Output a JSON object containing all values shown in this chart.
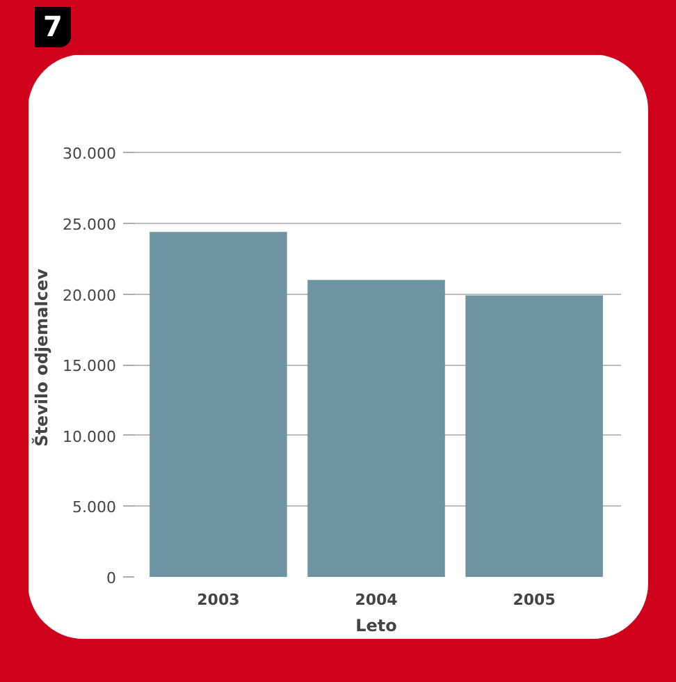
{
  "chart_data": {
    "type": "bar",
    "categories": [
      "2003",
      "2004",
      "2005"
    ],
    "values": [
      24400,
      21000,
      19900
    ],
    "color": "#6e94a3",
    "xlabel": "Leto",
    "ylabel": "Število odjemalcev",
    "ylim": [
      0,
      31000
    ],
    "yticks": [
      {
        "value": 0,
        "label": "0"
      },
      {
        "value": 5000,
        "label": "5.000"
      },
      {
        "value": 10000,
        "label": "10.000"
      },
      {
        "value": 15000,
        "label": "15.000"
      },
      {
        "value": 20000,
        "label": "20.000"
      },
      {
        "value": 25000,
        "label": "25.000"
      },
      {
        "value": 30000,
        "label": "30.000"
      }
    ],
    "grid": "y",
    "annotations": [
      "7"
    ]
  }
}
